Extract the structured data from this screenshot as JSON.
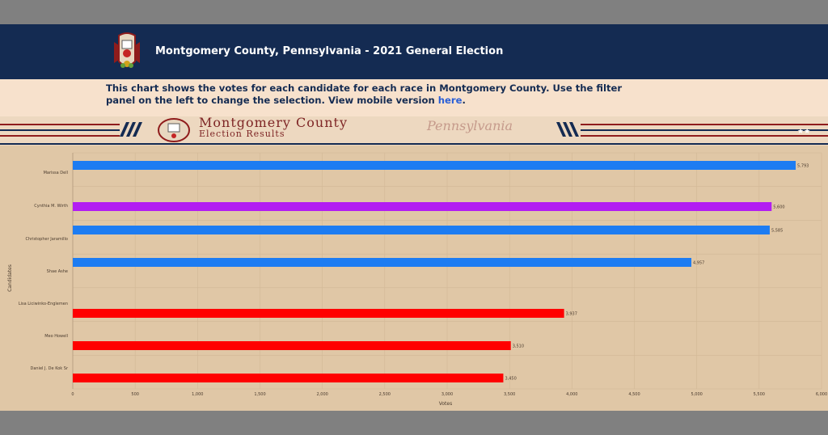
{
  "header": {
    "title": "Montgomery County, Pennsylvania - 2021 General Election"
  },
  "intro": {
    "text": "This chart shows the votes for each candidate for each race in Montgomery County. Use the filter panel on the left to change the selection. View mobile version ",
    "link_text": "here",
    "suffix": "."
  },
  "banner": {
    "title": "Montgomery County",
    "subtitle": "Election Results",
    "script": "Pennsylvania"
  },
  "colors": {
    "header_bg": "#142b52",
    "blue": "#1d7cf2",
    "purple": "#b21df2",
    "red": "#ff0000"
  },
  "chart_data": {
    "type": "bar",
    "orientation": "horizontal",
    "xlabel": "Votes",
    "ylabel": "Candidates",
    "xlim": [
      0,
      6000
    ],
    "xticks": [
      "0",
      "500",
      "1,000",
      "1,500",
      "2,000",
      "2,500",
      "3,000",
      "3,500",
      "4,000",
      "4,500",
      "5,000",
      "5,500",
      "6,000"
    ],
    "grid": true,
    "categories": [
      "Marissa Dell",
      "Cynthia M. Wirth",
      "Christopher Jaramillo",
      "Shae Ashe",
      "Lisa Liciwinko-Englemen",
      "Meo Howell",
      "Daniel J. De Kok Sr"
    ],
    "values": [
      5793,
      5600,
      5585,
      4957,
      3937,
      3510,
      3450
    ],
    "value_labels": [
      "5,793",
      "5,600",
      "5,585",
      "4,957",
      "3,937",
      "3,510",
      "3,450"
    ],
    "colors": [
      "#1d7cf2",
      "#b21df2",
      "#1d7cf2",
      "#1d7cf2",
      "#ff0000",
      "#ff0000",
      "#ff0000"
    ]
  }
}
